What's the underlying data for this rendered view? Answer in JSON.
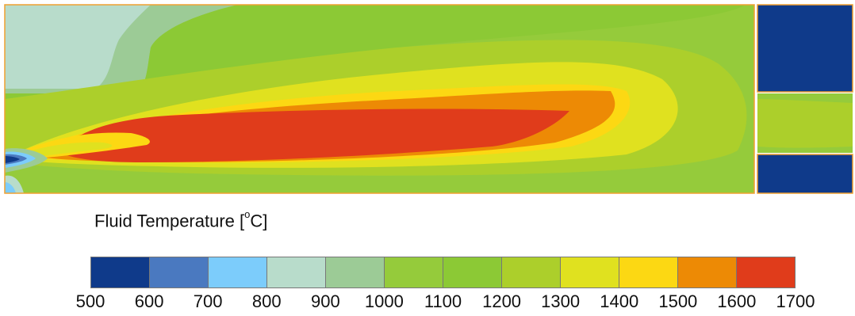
{
  "legend": {
    "title_prefix": "Fluid Temperature [",
    "title_superscript": "o",
    "title_suffix": "C]",
    "levels": [
      {
        "from": 500,
        "to": 600,
        "color": "#0f3a8a"
      },
      {
        "from": 600,
        "to": 700,
        "color": "#4a79c0"
      },
      {
        "from": 700,
        "to": 800,
        "color": "#7cccfb"
      },
      {
        "from": 800,
        "to": 900,
        "color": "#b8dccb"
      },
      {
        "from": 900,
        "to": 1000,
        "color": "#9ccb96"
      },
      {
        "from": 1000,
        "to": 1100,
        "color": "#95cb3b"
      },
      {
        "from": 1100,
        "to": 1200,
        "color": "#8cc935"
      },
      {
        "from": 1200,
        "to": 1300,
        "color": "#accf2b"
      },
      {
        "from": 1300,
        "to": 1400,
        "color": "#e0e11f"
      },
      {
        "from": 1400,
        "to": 1500,
        "color": "#fcd813"
      },
      {
        "from": 1500,
        "to": 1600,
        "color": "#ed8a05"
      },
      {
        "from": 1600,
        "to": 1700,
        "color": "#e03c1b"
      }
    ],
    "tick_labels": [
      "500",
      "600",
      "700",
      "800",
      "900",
      "1000",
      "1100",
      "1200",
      "1300",
      "1400",
      "1500",
      "1600",
      "1700"
    ]
  },
  "colors": {
    "outline": "#f0a030",
    "cold_block": "#0f3a8a"
  }
}
